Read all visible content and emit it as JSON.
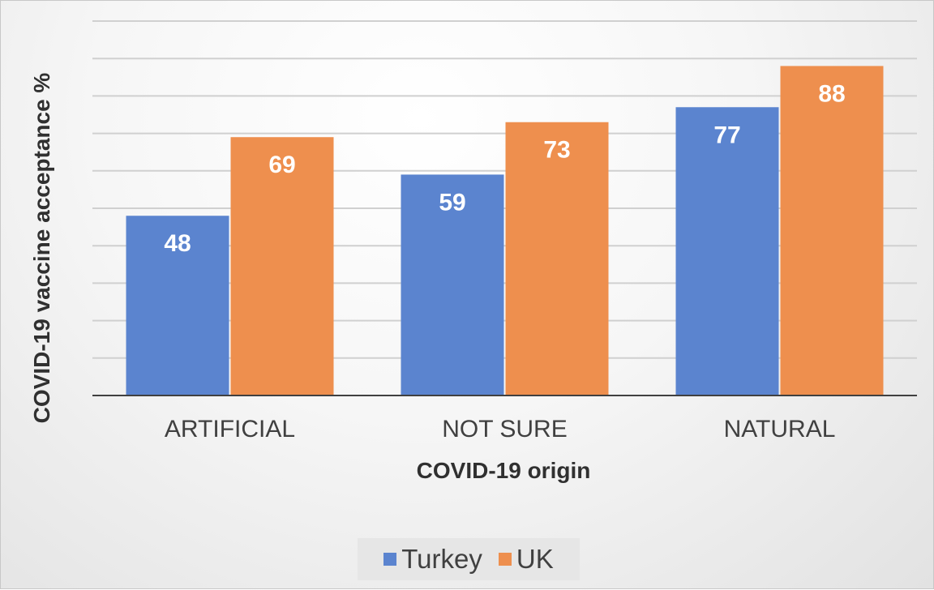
{
  "chart_data": {
    "type": "bar",
    "title": "",
    "xlabel": "COVID-19 origin",
    "ylabel": "COVID-19 vaccine acceptance %",
    "categories": [
      "ARTIFICIAL",
      "NOT SURE",
      "NATURAL"
    ],
    "series": [
      {
        "name": "Turkey",
        "values": [
          48,
          59,
          77
        ],
        "color": "#5b84cf"
      },
      {
        "name": "UK",
        "values": [
          69,
          73,
          88
        ],
        "color": "#ee8f4e"
      }
    ],
    "ylim": [
      0,
      100
    ],
    "ytick_step": 10,
    "ytick_labels_shown": false,
    "grid": true,
    "data_labels": true,
    "legend": "bottom"
  }
}
